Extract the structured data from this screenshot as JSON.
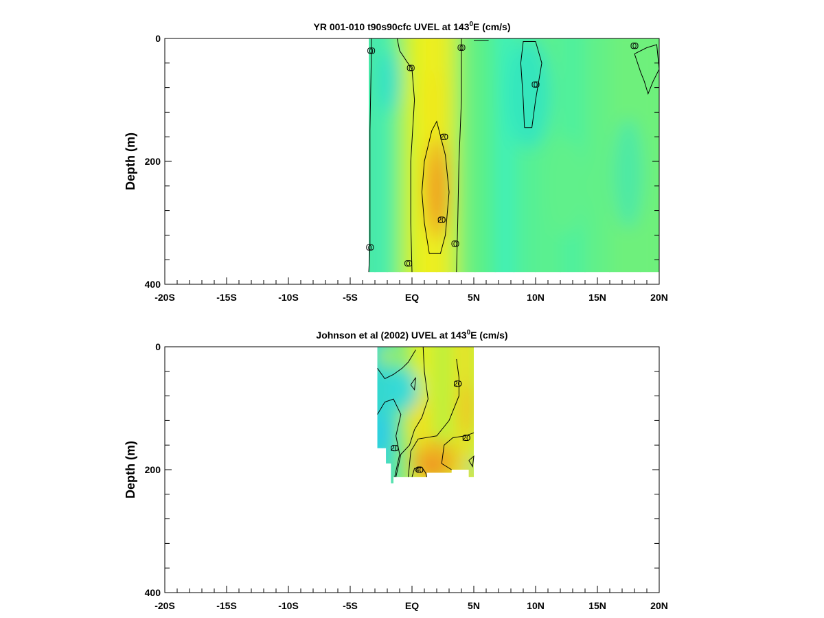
{
  "chart_data": [
    {
      "type": "heatmap",
      "title_main": "YR 001-010 t90s90cfc UVEL at 143",
      "title_sup": "0",
      "title_tail": "E (cm/s)",
      "ylabel": "Depth (m)",
      "xlim": [
        -20,
        20
      ],
      "ylim": [
        0,
        400
      ],
      "x_ticks": [
        {
          "value": -20,
          "label": "-20S"
        },
        {
          "value": -15,
          "label": "-15S"
        },
        {
          "value": -10,
          "label": "-10S"
        },
        {
          "value": -5,
          "label": "-5S"
        },
        {
          "value": 0,
          "label": "EQ"
        },
        {
          "value": 5,
          "label": "5N"
        },
        {
          "value": 10,
          "label": "10N"
        },
        {
          "value": 15,
          "label": "15N"
        },
        {
          "value": 20,
          "label": "20N"
        }
      ],
      "y_ticks": [
        {
          "value": 0,
          "label": "0"
        },
        {
          "value": 200,
          "label": "200"
        },
        {
          "value": 400,
          "label": "400"
        }
      ],
      "data_extent": {
        "x": [
          -3.5,
          20
        ],
        "depth": [
          0,
          380
        ]
      },
      "columns": [
        {
          "x": -3.5,
          "color": "#4be8a0"
        },
        {
          "x": -2.5,
          "color": "#43ecb5"
        },
        {
          "x": -1.5,
          "color": "#5ef08f"
        },
        {
          "x": -0.5,
          "color": "#b9f23e"
        },
        {
          "x": 0.5,
          "color": "#e6f21e"
        },
        {
          "x": 1.5,
          "color": "#f0ee1e"
        },
        {
          "x": 2.5,
          "color": "#e8ee26"
        },
        {
          "x": 3.3,
          "color": "#c8f036"
        },
        {
          "x": 4.2,
          "color": "#72f07a"
        },
        {
          "x": 6.0,
          "color": "#56f08c"
        },
        {
          "x": 7.5,
          "color": "#3ef0b8"
        },
        {
          "x": 9.0,
          "color": "#52f098"
        },
        {
          "x": 11.0,
          "color": "#5cf08e"
        },
        {
          "x": 13.0,
          "color": "#50f09c"
        },
        {
          "x": 15.0,
          "color": "#62f088"
        },
        {
          "x": 17.0,
          "color": "#6ef07c"
        },
        {
          "x": 20.0,
          "color": "#6ef07c"
        }
      ],
      "blobs": [
        {
          "x": 2.0,
          "depth": 240,
          "rx": 1.0,
          "ry": 90,
          "color": "#f0b020"
        },
        {
          "x": 2.0,
          "depth": 250,
          "rx": 0.6,
          "ry": 55,
          "color": "#f09820"
        },
        {
          "x": 1.8,
          "depth": 110,
          "rx": 1.1,
          "ry": 60,
          "color": "#f0e81e"
        },
        {
          "x": -1.8,
          "depth": 70,
          "rx": 0.9,
          "ry": 50,
          "color": "#32e0c8"
        },
        {
          "x": 9.5,
          "depth": 90,
          "rx": 1.8,
          "ry": 90,
          "color": "#32e4c0"
        },
        {
          "x": 12.5,
          "depth": 240,
          "rx": 1.5,
          "ry": 80,
          "color": "#62f08a"
        },
        {
          "x": 17.5,
          "depth": 220,
          "rx": 1.2,
          "ry": 90,
          "color": "#4ae8a8"
        }
      ],
      "contours": [
        {
          "level": "0",
          "points": [
            [
              -3.5,
              380
            ],
            [
              -3.4,
              340
            ],
            [
              -3.4,
              250
            ],
            [
              -3.4,
              150
            ],
            [
              -3.3,
              40
            ],
            [
              -3.3,
              0
            ]
          ]
        },
        {
          "level": "0",
          "points": [
            [
              0,
              380
            ],
            [
              -0.1,
              300
            ],
            [
              -0.1,
              200
            ],
            [
              0.2,
              100
            ],
            [
              0,
              50
            ],
            [
              -1.0,
              20
            ],
            [
              -1.2,
              0
            ]
          ]
        },
        {
          "level": "0",
          "points": [
            [
              3.6,
              380
            ],
            [
              3.7,
              300
            ],
            [
              3.8,
              200
            ],
            [
              4.0,
              100
            ],
            [
              4.0,
              0
            ]
          ]
        },
        {
          "level": "20",
          "points": [
            [
              1.4,
              350
            ],
            [
              1.0,
              300
            ],
            [
              0.8,
              250
            ],
            [
              1.0,
              200
            ],
            [
              1.6,
              150
            ],
            [
              2.0,
              135
            ],
            [
              2.7,
              190
            ],
            [
              3.0,
              250
            ],
            [
              2.7,
              320
            ],
            [
              2.3,
              350
            ],
            [
              1.4,
              350
            ]
          ]
        },
        {
          "level": "0",
          "points": [
            [
              9.1,
              145
            ],
            [
              9.0,
              100
            ],
            [
              8.8,
              40
            ],
            [
              9.0,
              5
            ],
            [
              10.0,
              5
            ],
            [
              10.5,
              40
            ],
            [
              10.0,
              100
            ],
            [
              9.7,
              145
            ],
            [
              9.1,
              145
            ]
          ]
        },
        {
          "level": "0",
          "points": [
            [
              18.0,
              25
            ],
            [
              19.0,
              15
            ],
            [
              19.8,
              10
            ],
            [
              20.0,
              50
            ],
            [
              19.5,
              70
            ],
            [
              19.1,
              90
            ],
            [
              18.8,
              70
            ],
            [
              18.5,
              55
            ],
            [
              18.0,
              25
            ]
          ]
        },
        {
          "level": "0",
          "points": [
            [
              5.0,
              3
            ],
            [
              6.2,
              3
            ]
          ]
        }
      ],
      "contour_labels": [
        {
          "x": -3.3,
          "depth": 20,
          "text": "0"
        },
        {
          "x": -0.1,
          "depth": 48,
          "text": "0"
        },
        {
          "x": 4.0,
          "depth": 15,
          "text": "0"
        },
        {
          "x": 10.0,
          "depth": 75,
          "text": "0"
        },
        {
          "x": 18.0,
          "depth": 12,
          "text": "0"
        },
        {
          "x": -3.4,
          "depth": 340,
          "text": "0"
        },
        {
          "x": -0.3,
          "depth": 366,
          "text": "0"
        },
        {
          "x": 3.5,
          "depth": 334,
          "text": "0"
        },
        {
          "x": 2.6,
          "depth": 160,
          "text": "20"
        },
        {
          "x": 2.4,
          "depth": 295,
          "text": "20"
        }
      ]
    },
    {
      "type": "heatmap",
      "title_main": "Johnson et al (2002) UVEL at 143",
      "title_sup": "0",
      "title_tail": "E (cm/s)",
      "ylabel": "Depth (m)",
      "xlim": [
        -20,
        20
      ],
      "ylim": [
        0,
        400
      ],
      "x_ticks": [
        {
          "value": -20,
          "label": "-20S"
        },
        {
          "value": -15,
          "label": "-15S"
        },
        {
          "value": -10,
          "label": "-10S"
        },
        {
          "value": -5,
          "label": "-5S"
        },
        {
          "value": 0,
          "label": "EQ"
        },
        {
          "value": 5,
          "label": "5N"
        },
        {
          "value": 10,
          "label": "10N"
        },
        {
          "value": 15,
          "label": "15N"
        },
        {
          "value": 20,
          "label": "20N"
        }
      ],
      "y_ticks": [
        {
          "value": 0,
          "label": "0"
        },
        {
          "value": 200,
          "label": "200"
        },
        {
          "value": 400,
          "label": "400"
        }
      ],
      "data_outline": [
        [
          -2.8,
          0
        ],
        [
          5.0,
          0
        ],
        [
          5.0,
          212
        ],
        [
          4.6,
          212
        ],
        [
          4.6,
          200
        ],
        [
          3.2,
          200
        ],
        [
          3.2,
          205
        ],
        [
          1.2,
          205
        ],
        [
          1.2,
          212
        ],
        [
          -1.5,
          212
        ],
        [
          -1.5,
          222
        ],
        [
          -1.7,
          222
        ],
        [
          -1.7,
          190
        ],
        [
          -2.1,
          190
        ],
        [
          -2.1,
          165
        ],
        [
          -2.8,
          165
        ]
      ],
      "columns": [
        {
          "x": -2.8,
          "color": "#30d8d0"
        },
        {
          "x": -2.0,
          "color": "#3ad8c8"
        },
        {
          "x": -1.2,
          "color": "#5ae898"
        },
        {
          "x": -0.4,
          "color": "#a0ee50"
        },
        {
          "x": 0.4,
          "color": "#d8f028"
        },
        {
          "x": 1.2,
          "color": "#e8ee20"
        },
        {
          "x": 2.0,
          "color": "#c0f038"
        },
        {
          "x": 2.8,
          "color": "#b8f040"
        },
        {
          "x": 3.6,
          "color": "#e0ec22"
        },
        {
          "x": 4.3,
          "color": "#f0d820"
        },
        {
          "x": 5.0,
          "color": "#c8f038"
        }
      ],
      "blobs": [
        {
          "x": 1.8,
          "depth": 185,
          "rx": 1.9,
          "ry": 35,
          "color": "#f0b020"
        },
        {
          "x": 1.6,
          "depth": 195,
          "rx": 1.0,
          "ry": 18,
          "color": "#f09020"
        },
        {
          "x": 0.6,
          "depth": 120,
          "rx": 1.0,
          "ry": 45,
          "color": "#f0e01e"
        },
        {
          "x": -0.7,
          "depth": 70,
          "rx": 1.3,
          "ry": 35,
          "color": "#30d8e0"
        },
        {
          "x": -2.3,
          "depth": 140,
          "rx": 0.6,
          "ry": 35,
          "color": "#28c8f0"
        },
        {
          "x": 4.4,
          "depth": 100,
          "rx": 0.6,
          "ry": 45,
          "color": "#f0c020"
        },
        {
          "x": 4.8,
          "depth": 195,
          "rx": 0.3,
          "ry": 15,
          "color": "#40e0c0"
        },
        {
          "x": -2.0,
          "depth": 15,
          "rx": 0.8,
          "ry": 15,
          "color": "#b0f048"
        }
      ],
      "contours": [
        {
          "level": "0",
          "points": [
            [
              -2.8,
              35
            ],
            [
              -2.2,
              52
            ],
            [
              -1.5,
              45
            ],
            [
              -0.8,
              35
            ],
            [
              -0.3,
              25
            ],
            [
              0.3,
              5
            ]
          ]
        },
        {
          "level": "0",
          "points": [
            [
              -2.8,
              110
            ],
            [
              -2.2,
              90
            ],
            [
              -1.5,
              85
            ],
            [
              -0.9,
              110
            ],
            [
              -1.3,
              145
            ],
            [
              -1.0,
              175
            ],
            [
              -1.4,
              212
            ]
          ]
        },
        {
          "level": "0",
          "points": [
            [
              -0.1,
              62
            ],
            [
              0.3,
              50
            ],
            [
              0.2,
              70
            ],
            [
              -0.1,
              62
            ]
          ]
        },
        {
          "level": "20",
          "points": [
            [
              -1.3,
              212
            ],
            [
              -0.9,
              175
            ],
            [
              -0.2,
              160
            ],
            [
              0.2,
              135
            ],
            [
              0.8,
              115
            ],
            [
              1.3,
              85
            ],
            [
              1.0,
              40
            ],
            [
              0.9,
              0
            ]
          ]
        },
        {
          "level": "20",
          "points": [
            [
              3.6,
              20
            ],
            [
              3.8,
              50
            ],
            [
              3.8,
              80
            ],
            [
              3.0,
              120
            ],
            [
              2.0,
              145
            ],
            [
              0.5,
              150
            ],
            [
              -0.1,
              170
            ],
            [
              -0.3,
              212
            ]
          ]
        },
        {
          "level": "20",
          "points": [
            [
              5.0,
              140
            ],
            [
              4.3,
              145
            ],
            [
              3.3,
              148
            ],
            [
              2.6,
              160
            ],
            [
              2.4,
              190
            ],
            [
              3.2,
              200
            ]
          ]
        },
        {
          "level": "40",
          "points": [
            [
              0,
              212
            ],
            [
              0.2,
              198
            ],
            [
              0.8,
              196
            ],
            [
              1.1,
              205
            ],
            [
              1.2,
              212
            ]
          ]
        },
        {
          "level": "0",
          "points": [
            [
              4.6,
              185
            ],
            [
              5.0,
              178
            ],
            [
              4.9,
              195
            ],
            [
              4.6,
              185
            ]
          ]
        }
      ],
      "contour_labels": [
        {
          "x": 3.7,
          "depth": 60,
          "text": "20"
        },
        {
          "x": 4.4,
          "depth": 148,
          "text": "20"
        },
        {
          "x": -1.4,
          "depth": 165,
          "text": "20"
        },
        {
          "x": 0.6,
          "depth": 200,
          "text": "40"
        }
      ]
    }
  ]
}
